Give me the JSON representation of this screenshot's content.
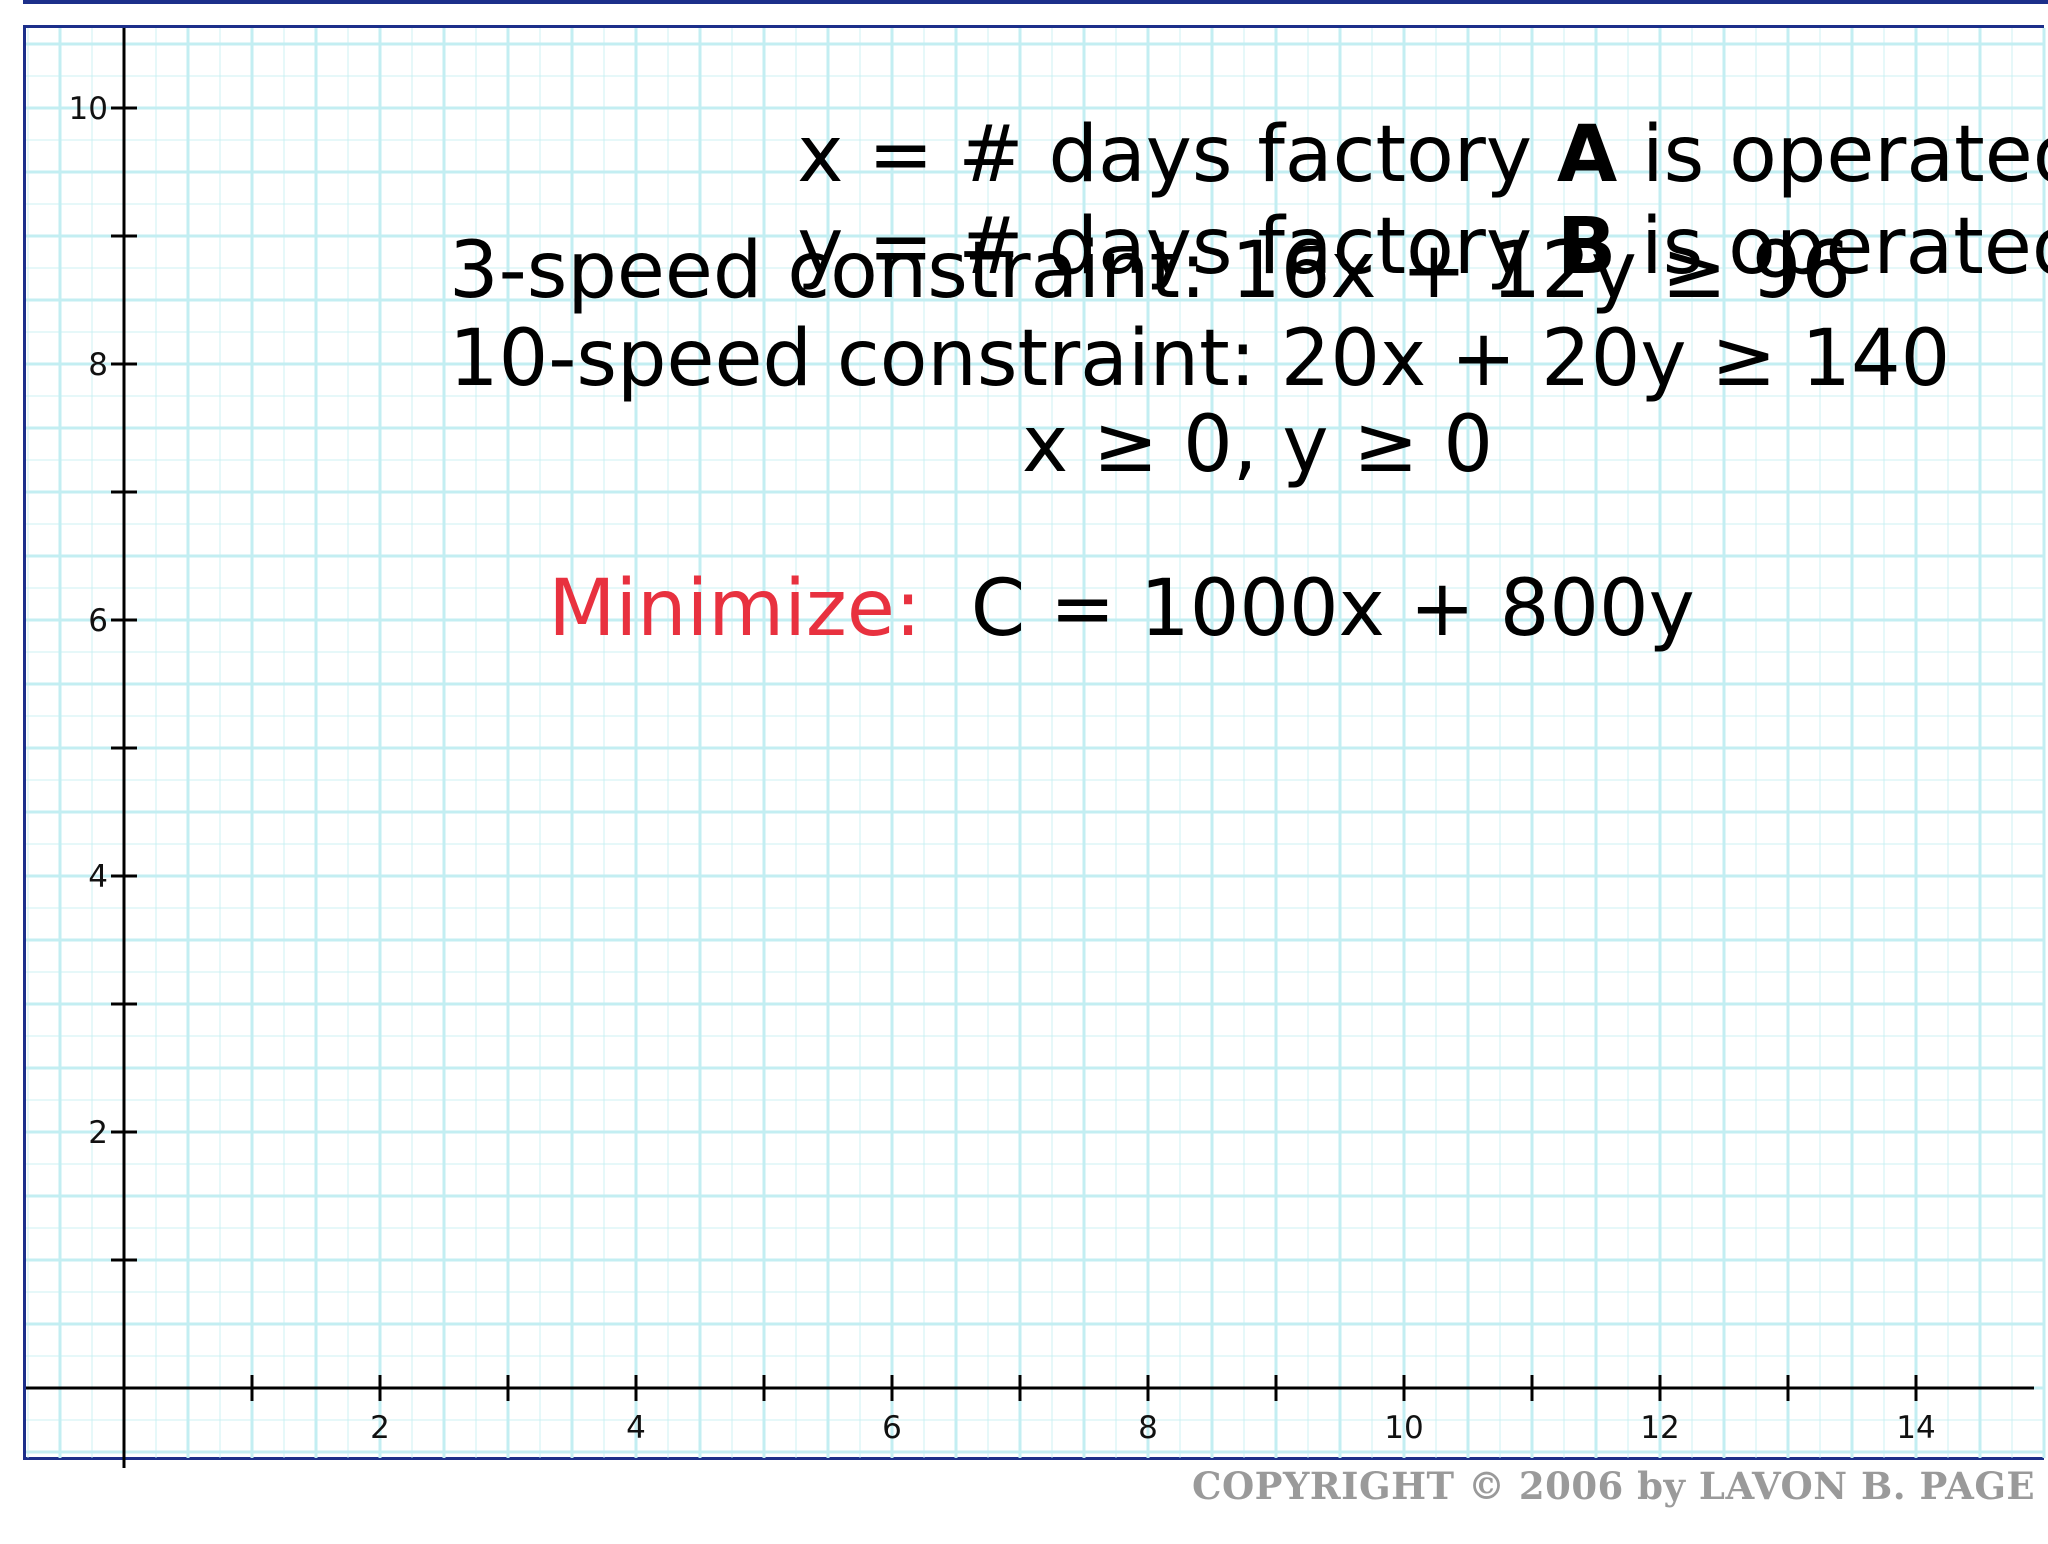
{
  "definitions": {
    "x_line": {
      "prefix": "x = # days factory ",
      "factory": "A",
      "suffix": " is operated"
    },
    "y_line": {
      "prefix": "y = # days factory ",
      "factory": "B",
      "suffix": " is operated"
    }
  },
  "constraints": {
    "three_speed": "3-speed constraint: 16x + 12y ≥ 96",
    "ten_speed": "10-speed constraint: 20x + 20y ≥ 140",
    "nonneg": "x ≥ 0, y ≥ 0"
  },
  "objective": {
    "label": "Minimize:",
    "expression": "C = 1000x + 800y"
  },
  "copyright": "COPYRIGHT © 2006 by LAVON B. PAGE",
  "colors": {
    "frame": "#1c2f8a",
    "grid": "#c3eef2",
    "axis": "#000000",
    "minimize": "#e8313f",
    "copyright": "#9a9a9a"
  },
  "graph": {
    "x_ticks": [
      "2",
      "4",
      "6",
      "8",
      "10",
      "12",
      "14"
    ],
    "y_ticks": [
      "2",
      "4",
      "6",
      "8",
      "10"
    ],
    "x_range": [
      0,
      14
    ],
    "y_range": [
      0,
      10
    ],
    "grid": true
  }
}
